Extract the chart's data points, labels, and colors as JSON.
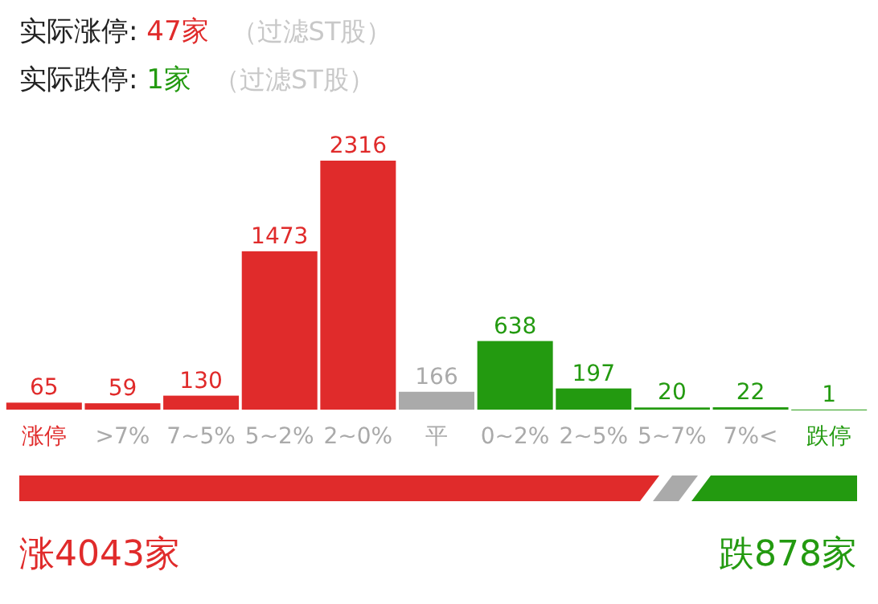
{
  "chart_data": {
    "type": "bar",
    "title": "实际涨停: 47家",
    "subtitle": "实际跌停: 1家",
    "annotations": [
      "（过滤ST股）",
      "（过滤ST股）",
      "涨4043家",
      "跌878家"
    ],
    "categories": [
      "涨停",
      ">7%",
      "7~5%",
      "5~2%",
      "2~0%",
      "平",
      "0~2%",
      "2~5%",
      "5~7%",
      "7%<",
      "跌停"
    ],
    "values": [
      65,
      59,
      130,
      1473,
      2316,
      166,
      638,
      197,
      20,
      22,
      1
    ],
    "colors": [
      "#e02b2b",
      "#e02b2b",
      "#e02b2b",
      "#e02b2b",
      "#e02b2b",
      "#aaaaaa",
      "#239a10",
      "#239a10",
      "#239a10",
      "#239a10",
      "#239a10"
    ],
    "data_labels": true
  }
}
